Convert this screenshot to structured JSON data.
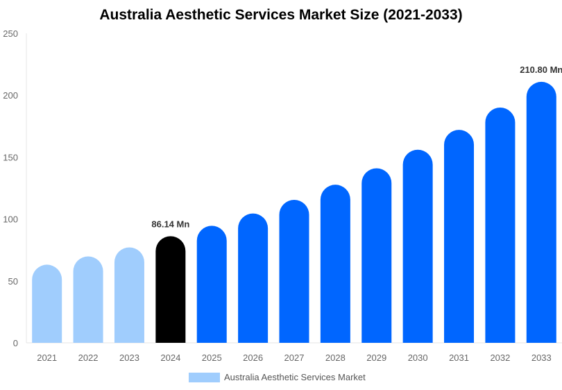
{
  "chart_data": {
    "type": "bar",
    "title": "Australia Aesthetic Services Market Size (2021-2033)",
    "categories": [
      "2021",
      "2022",
      "2023",
      "2024",
      "2025",
      "2026",
      "2027",
      "2028",
      "2029",
      "2030",
      "2031",
      "2032",
      "2033"
    ],
    "series": [
      {
        "name": "Australia Aesthetic Services Market",
        "values": [
          63.1,
          69.8,
          77.1,
          86.14,
          94.5,
          104.5,
          115.5,
          127.7,
          141,
          156,
          172,
          190,
          210.8
        ]
      }
    ],
    "ylim": [
      0,
      250
    ],
    "yticks": [
      0,
      50,
      100,
      150,
      200,
      250
    ],
    "data_labels": {
      "3": "86.14 Mn",
      "12": "210.80 Mn"
    },
    "colors": {
      "historical": "#a0cdfd",
      "base_year": "#000000",
      "forecast": "#0066ff"
    },
    "grid": false,
    "legend_position": "bottom"
  }
}
